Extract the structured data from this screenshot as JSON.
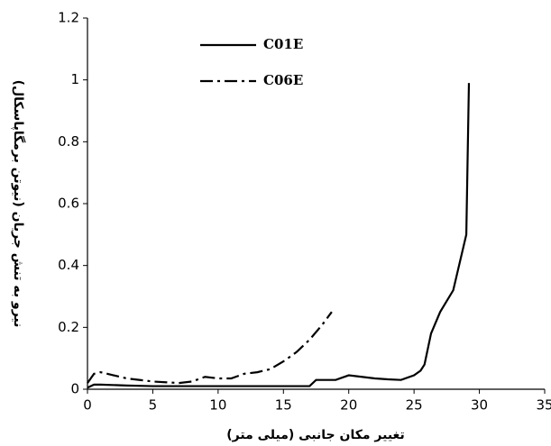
{
  "chart_data": {
    "type": "line",
    "x_label": "تغییر مکان جانبی (میلی متر)",
    "y_label": "نیرو به تنش جریان (نیوتن برمگاپاسکال)",
    "xlim": [
      0,
      35
    ],
    "xticks": [
      0,
      5,
      10,
      15,
      20,
      25,
      30,
      35
    ],
    "ylim": [
      0,
      1.2
    ],
    "yticks": [
      0,
      0.2,
      0.4,
      0.6,
      0.8,
      1,
      1.2
    ],
    "series": [
      {
        "name": "C01E",
        "color": "#000000",
        "line_style": "solid",
        "x": [
          0,
          0.5,
          1,
          3,
          5,
          10,
          15,
          17,
          17.5,
          18,
          19,
          20,
          21,
          22,
          23,
          24,
          25,
          25.5,
          25.8,
          26.3,
          27,
          28,
          29,
          29.2
        ],
        "values": [
          0.005,
          0.015,
          0.015,
          0.012,
          0.01,
          0.01,
          0.01,
          0.01,
          0.03,
          0.03,
          0.03,
          0.045,
          0.04,
          0.035,
          0.032,
          0.03,
          0.045,
          0.06,
          0.08,
          0.18,
          0.25,
          0.32,
          0.5,
          0.99
        ]
      },
      {
        "name": "C06E",
        "color": "#000000",
        "line_style": "dashdot",
        "x": [
          0,
          0.5,
          1,
          2,
          3,
          5,
          7,
          8,
          9,
          10,
          11,
          12,
          13,
          14,
          15,
          16,
          17,
          18,
          18.7
        ],
        "values": [
          0.02,
          0.05,
          0.055,
          0.045,
          0.035,
          0.025,
          0.02,
          0.025,
          0.04,
          0.035,
          0.035,
          0.05,
          0.055,
          0.065,
          0.09,
          0.12,
          0.16,
          0.21,
          0.25
        ]
      }
    ]
  }
}
